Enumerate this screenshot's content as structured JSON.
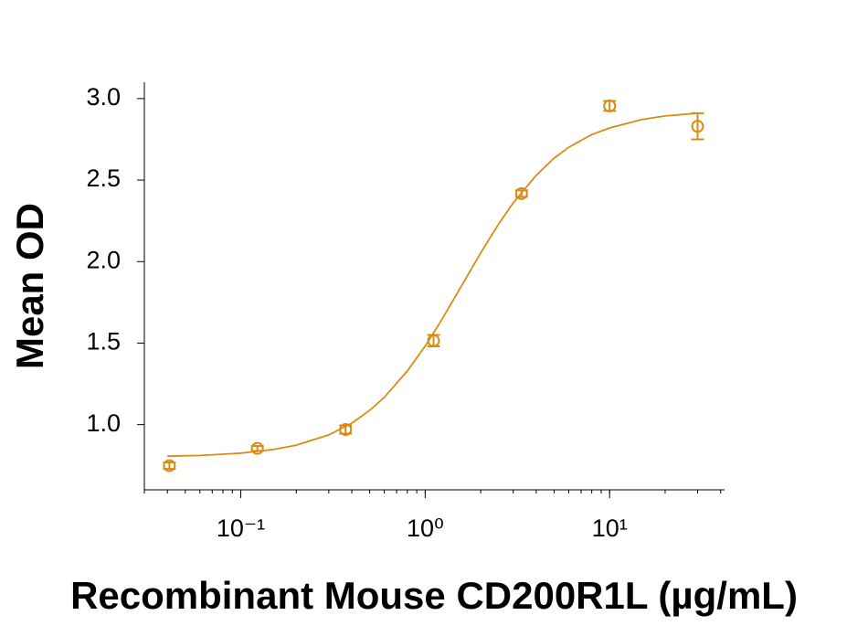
{
  "chart_data": {
    "type": "scatter",
    "xlabel": "Recombinant Mouse CD200R1L (µg/mL)",
    "ylabel": "Mean OD",
    "x": [
      0.041,
      0.123,
      0.37,
      1.11,
      3.33,
      10,
      30
    ],
    "values": [
      0.748,
      0.854,
      0.97,
      1.515,
      2.417,
      2.955,
      2.83
    ],
    "errors": [
      0.02,
      0.015,
      0.025,
      0.035,
      0.02,
      0.03,
      0.08
    ],
    "color": "#d98c14",
    "fit": {
      "x": [
        0.04,
        0.06,
        0.1,
        0.15,
        0.2,
        0.3,
        0.4,
        0.5,
        0.6,
        0.8,
        1,
        1.2,
        1.5,
        2,
        2.5,
        3,
        4,
        5,
        6,
        8,
        10,
        15,
        20,
        30
      ],
      "values": [
        0.806,
        0.811,
        0.825,
        0.847,
        0.874,
        0.937,
        1.009,
        1.087,
        1.167,
        1.329,
        1.482,
        1.624,
        1.81,
        2.053,
        2.23,
        2.36,
        2.53,
        2.634,
        2.701,
        2.779,
        2.82,
        2.872,
        2.893,
        2.91
      ]
    },
    "xscale": "log",
    "xlim": [
      0.03,
      42
    ],
    "ylim": [
      0.6,
      3.1
    ],
    "xticks": [
      {
        "value": 0.1,
        "label": "10⁻¹"
      },
      {
        "value": 1,
        "label": "10⁰"
      },
      {
        "value": 10,
        "label": "10¹"
      }
    ],
    "yticks": [
      {
        "value": 1,
        "label": "1.0"
      },
      1.5,
      {
        "value": 2,
        "label": "2.0"
      },
      2.5,
      {
        "value": 3,
        "label": "3.0"
      }
    ]
  }
}
